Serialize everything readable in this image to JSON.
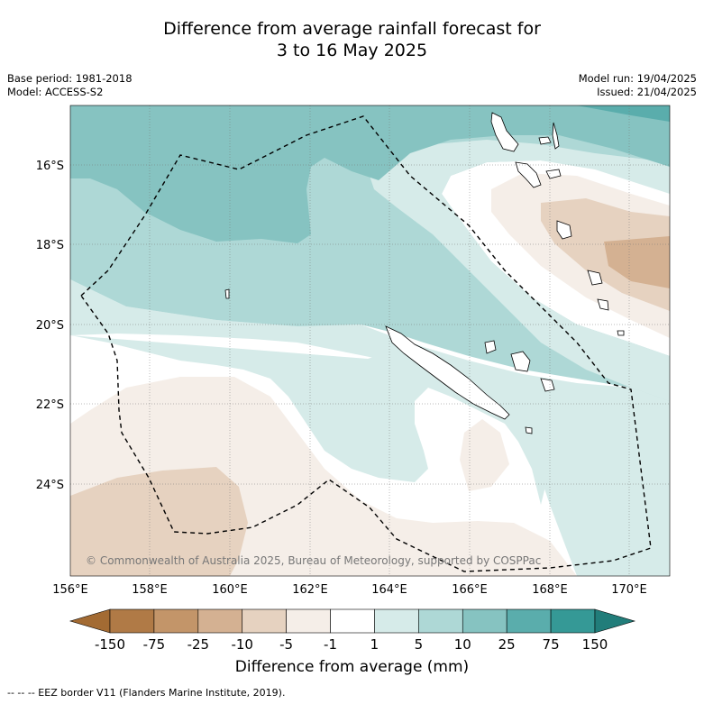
{
  "title_line1": "Difference from average rainfall forecast for",
  "title_line2": "3 to 16 May 2025",
  "base_period": "Base period: 1981-2018",
  "model": "Model: ACCESS-S2",
  "model_run": "Model run: 19/04/2025",
  "issued": "Issued: 21/04/2025",
  "copyright": "© Commonwealth of Australia 2025, Bureau of Meteorology, supported by COSPPac",
  "lat_labels": [
    "16°S",
    "18°S",
    "20°S",
    "22°S",
    "24°S"
  ],
  "lon_labels": [
    "156°E",
    "158°E",
    "160°E",
    "162°E",
    "164°E",
    "166°E",
    "168°E",
    "170°E"
  ],
  "colorbar": {
    "ticks": [
      "-150",
      "-75",
      "-25",
      "-10",
      "-5",
      "-1",
      "1",
      "5",
      "10",
      "25",
      "75",
      "150"
    ],
    "colors": [
      "#a36b33",
      "#b07a46",
      "#c39569",
      "#d4b192",
      "#e6d2c0",
      "#f5eee8",
      "#ffffff",
      "#d6ebe9",
      "#aed8d6",
      "#86c3c1",
      "#5aadac",
      "#359996",
      "#217d7a"
    ],
    "label": "Difference from average (mm)"
  },
  "footer": "--  --  -- EEZ border V11 (Flanders Marine Institute, 2019)."
}
